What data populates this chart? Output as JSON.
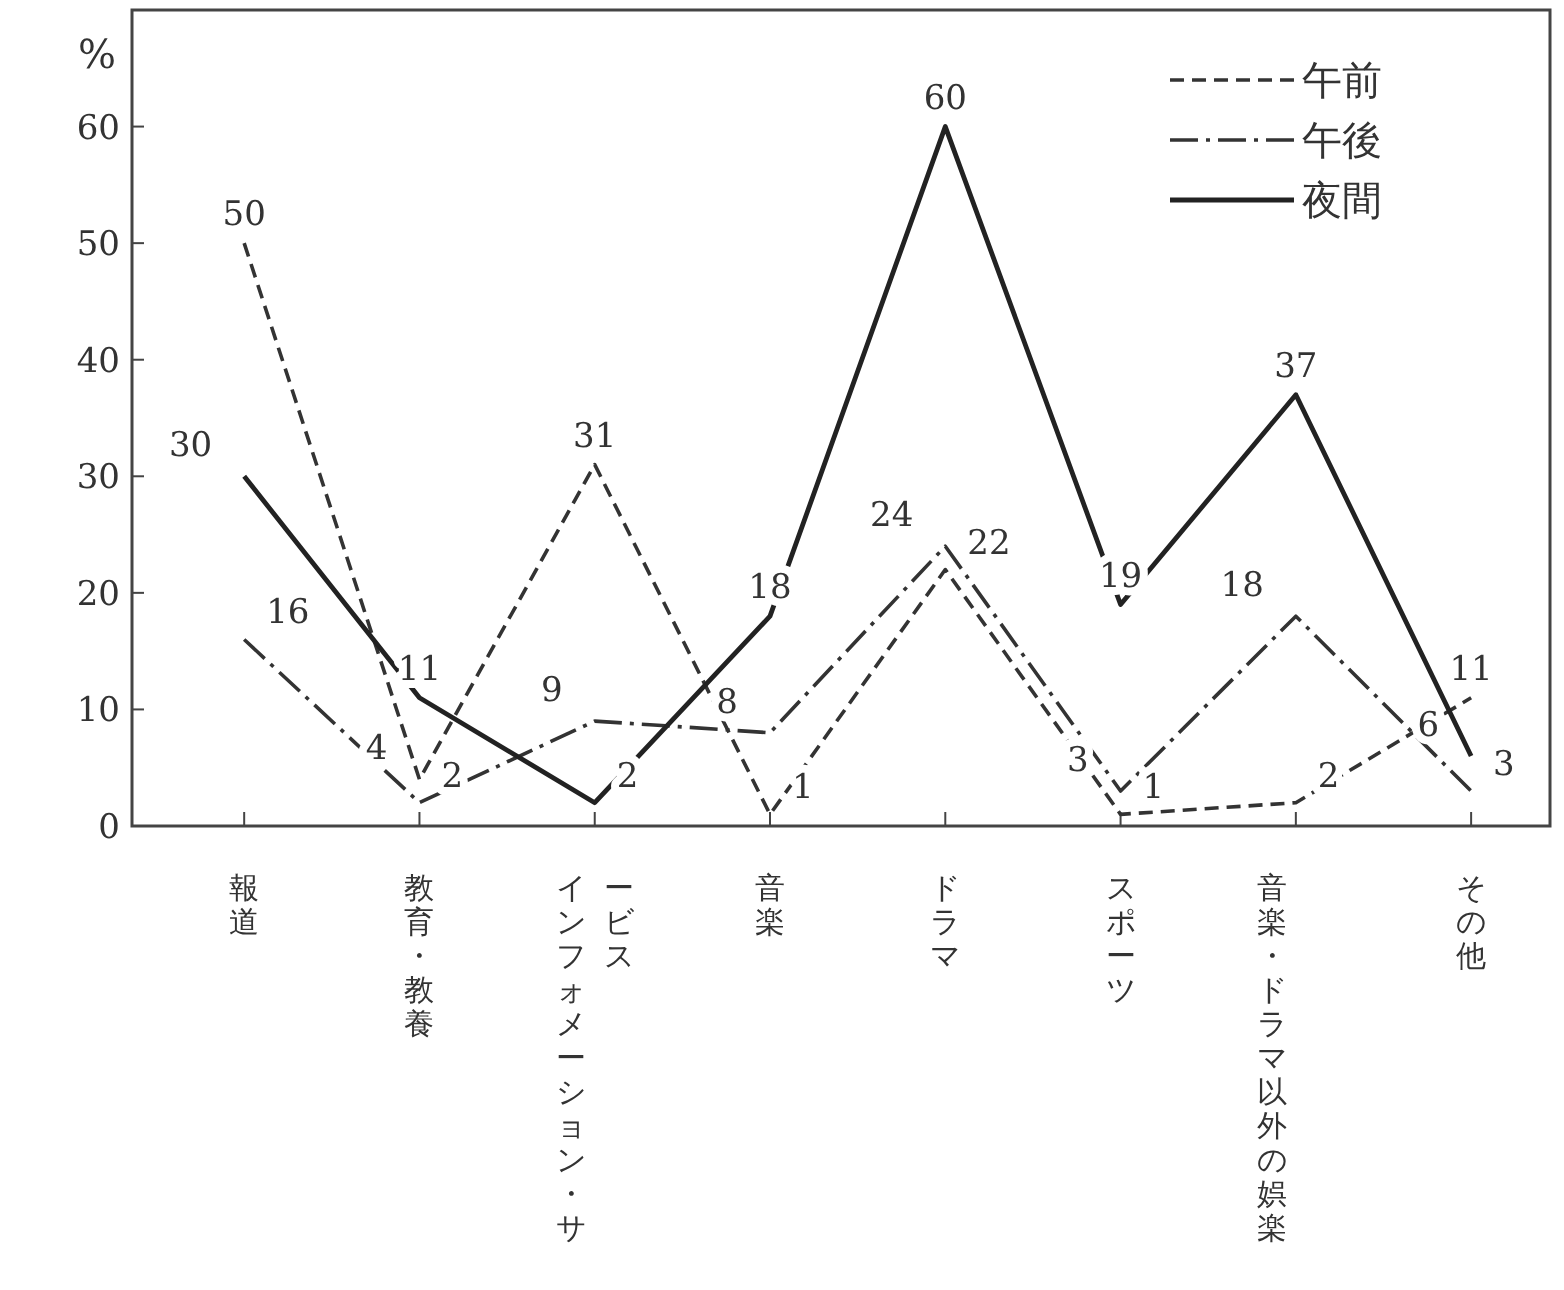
{
  "chart_data": {
    "type": "line",
    "ylabel": "%",
    "categories": [
      "報道",
      "教育・教養",
      "インフォメーション・サービス",
      "音楽",
      "ドラマ",
      "スポーツ",
      "音楽・ドラマ以外の娯楽",
      "その他"
    ],
    "series": [
      {
        "name": "午前",
        "color": "#333333",
        "line_style": "dashed",
        "values": [
          50,
          4,
          31,
          1,
          22,
          1,
          2,
          11
        ]
      },
      {
        "name": "午後",
        "color": "#333333",
        "line_style": "dashdot",
        "values": [
          16,
          2,
          9,
          8,
          24,
          3,
          18,
          3
        ]
      },
      {
        "name": "夜間",
        "color": "#222222",
        "line_style": "solid",
        "values": [
          30,
          11,
          2,
          18,
          60,
          19,
          37,
          6
        ]
      }
    ],
    "ylim": [
      0,
      70
    ],
    "yticks": [
      0,
      10,
      20,
      30,
      40,
      50,
      60
    ],
    "data_labels": true,
    "legend": "top right",
    "grid": false,
    "marker": "none"
  }
}
